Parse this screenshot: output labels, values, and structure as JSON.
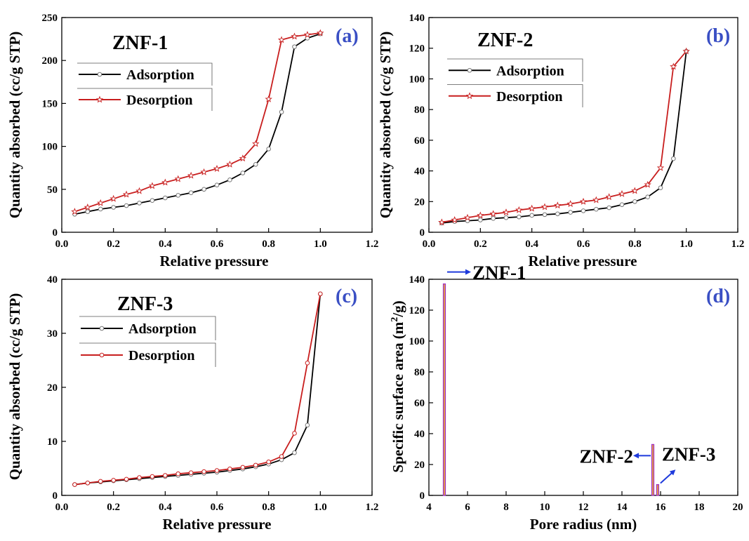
{
  "colors": {
    "adsorption": "#000000",
    "desorption": "#c81e1e",
    "panel_tag": "#3a4fc4",
    "arrow": "#1e3adc",
    "bar_outline": "#a030c8",
    "bar_fill": "#e8a040"
  },
  "chart_data": [
    {
      "type": "line",
      "panel_tag": "(a)",
      "title": "ZNF-1",
      "xlabel": "Relative pressure",
      "ylabel": "Quantity absorbed (cc/g STP)",
      "xlim": [
        0.0,
        1.2
      ],
      "ylim": [
        0,
        250
      ],
      "xticks": [
        "0.0",
        "0.2",
        "0.4",
        "0.6",
        "0.8",
        "1.0",
        "1.2"
      ],
      "yticks": [
        "0",
        "50",
        "100",
        "150",
        "200",
        "250"
      ],
      "grid": false,
      "legend_position": "upper-left",
      "series": [
        {
          "name": "Adsorption",
          "marker": "circle",
          "color": "#000000",
          "x": [
            0.05,
            0.1,
            0.15,
            0.2,
            0.25,
            0.3,
            0.35,
            0.4,
            0.45,
            0.5,
            0.55,
            0.6,
            0.65,
            0.7,
            0.75,
            0.8,
            0.85,
            0.9,
            0.95,
            1.0
          ],
          "y": [
            21,
            24,
            27,
            29,
            31,
            34,
            37,
            40,
            43,
            46,
            50,
            55,
            61,
            69,
            79,
            97,
            140,
            216,
            226,
            231
          ]
        },
        {
          "name": "Desorption",
          "marker": "star",
          "color": "#c81e1e",
          "x": [
            1.0,
            0.95,
            0.9,
            0.85,
            0.8,
            0.75,
            0.7,
            0.65,
            0.6,
            0.55,
            0.5,
            0.45,
            0.4,
            0.35,
            0.3,
            0.25,
            0.2,
            0.15,
            0.1,
            0.05
          ],
          "y": [
            232,
            230,
            228,
            224,
            155,
            103,
            86,
            79,
            74,
            70,
            66,
            62,
            58,
            54,
            48,
            44,
            39,
            34,
            29,
            24
          ]
        }
      ]
    },
    {
      "type": "line",
      "panel_tag": "(b)",
      "title": "ZNF-2",
      "xlabel": "Relative pressure",
      "ylabel": "Quantity absorbed (cc/g STP)",
      "xlim": [
        0.0,
        1.2
      ],
      "ylim": [
        0,
        140
      ],
      "xticks": [
        "0.0",
        "0.2",
        "0.4",
        "0.6",
        "0.8",
        "1.0",
        "1.2"
      ],
      "yticks": [
        "0",
        "20",
        "40",
        "60",
        "80",
        "100",
        "120",
        "140"
      ],
      "grid": false,
      "legend_position": "upper-left",
      "series": [
        {
          "name": "Adsorption",
          "marker": "circle",
          "color": "#000000",
          "x": [
            0.05,
            0.1,
            0.15,
            0.2,
            0.25,
            0.3,
            0.35,
            0.4,
            0.45,
            0.5,
            0.55,
            0.6,
            0.65,
            0.7,
            0.75,
            0.8,
            0.85,
            0.9,
            0.95,
            1.0
          ],
          "y": [
            6,
            7,
            7.5,
            8,
            9,
            9.5,
            10,
            11,
            11.5,
            12,
            13,
            14,
            15,
            16,
            18,
            20,
            23,
            29,
            48,
            118
          ]
        },
        {
          "name": "Desorption",
          "marker": "star",
          "color": "#c81e1e",
          "x": [
            1.0,
            0.95,
            0.9,
            0.85,
            0.8,
            0.75,
            0.7,
            0.65,
            0.6,
            0.55,
            0.5,
            0.45,
            0.4,
            0.35,
            0.3,
            0.25,
            0.2,
            0.15,
            0.1,
            0.05
          ],
          "y": [
            118,
            108,
            42,
            31,
            27,
            25,
            23,
            21,
            20,
            18.5,
            17.5,
            16.5,
            15.5,
            14.5,
            13,
            12,
            11,
            9.5,
            8,
            6.5
          ]
        }
      ]
    },
    {
      "type": "line",
      "panel_tag": "(c)",
      "title": "ZNF-3",
      "xlabel": "Relative pressure",
      "ylabel": "Quantity absorbed (cc/g STP)",
      "xlim": [
        0.0,
        1.2
      ],
      "ylim": [
        0,
        40
      ],
      "xticks": [
        "0.0",
        "0.2",
        "0.4",
        "0.6",
        "0.8",
        "1.0",
        "1.2"
      ],
      "yticks": [
        "0",
        "10",
        "20",
        "30",
        "40"
      ],
      "grid": false,
      "legend_position": "upper-left",
      "series": [
        {
          "name": "Adsorption",
          "marker": "circle",
          "color": "#000000",
          "x": [
            0.05,
            0.1,
            0.15,
            0.2,
            0.25,
            0.3,
            0.35,
            0.4,
            0.45,
            0.5,
            0.55,
            0.6,
            0.65,
            0.7,
            0.75,
            0.8,
            0.85,
            0.9,
            0.95,
            1.0
          ],
          "y": [
            2.0,
            2.3,
            2.5,
            2.7,
            2.9,
            3.1,
            3.3,
            3.5,
            3.7,
            3.9,
            4.1,
            4.3,
            4.6,
            4.9,
            5.3,
            5.8,
            6.6,
            7.9,
            13.0,
            37.3
          ]
        },
        {
          "name": "Desorption",
          "marker": "circle",
          "color": "#c81e1e",
          "x": [
            1.0,
            0.95,
            0.9,
            0.85,
            0.8,
            0.75,
            0.7,
            0.65,
            0.6,
            0.55,
            0.5,
            0.45,
            0.4,
            0.35,
            0.3,
            0.25,
            0.2,
            0.15,
            0.1,
            0.05
          ],
          "y": [
            37.3,
            24.5,
            11.5,
            7.2,
            6.2,
            5.6,
            5.2,
            4.9,
            4.6,
            4.4,
            4.2,
            4.0,
            3.7,
            3.5,
            3.3,
            3.0,
            2.8,
            2.6,
            2.3,
            2.0
          ]
        }
      ]
    },
    {
      "type": "bar",
      "panel_tag": "(d)",
      "title": "",
      "xlabel": "Pore radius (nm)",
      "ylabel_main": "Specific surface area (m",
      "ylabel_sup": "2",
      "ylabel_end": "/g)",
      "xlim": [
        4,
        20
      ],
      "ylim": [
        0,
        140
      ],
      "xticks": [
        "4",
        "6",
        "8",
        "10",
        "12",
        "14",
        "16",
        "18",
        "20"
      ],
      "yticks": [
        "0",
        "20",
        "40",
        "60",
        "80",
        "100",
        "120",
        "140"
      ],
      "grid": false,
      "bars": [
        {
          "name": "ZNF-1",
          "x": 4.8,
          "value": 137
        },
        {
          "name": "ZNF-2",
          "x": 15.6,
          "value": 33
        },
        {
          "name": "ZNF-3",
          "x": 15.85,
          "value": 7
        }
      ],
      "annotations": [
        "ZNF-1",
        "ZNF-2",
        "ZNF-3"
      ]
    }
  ]
}
